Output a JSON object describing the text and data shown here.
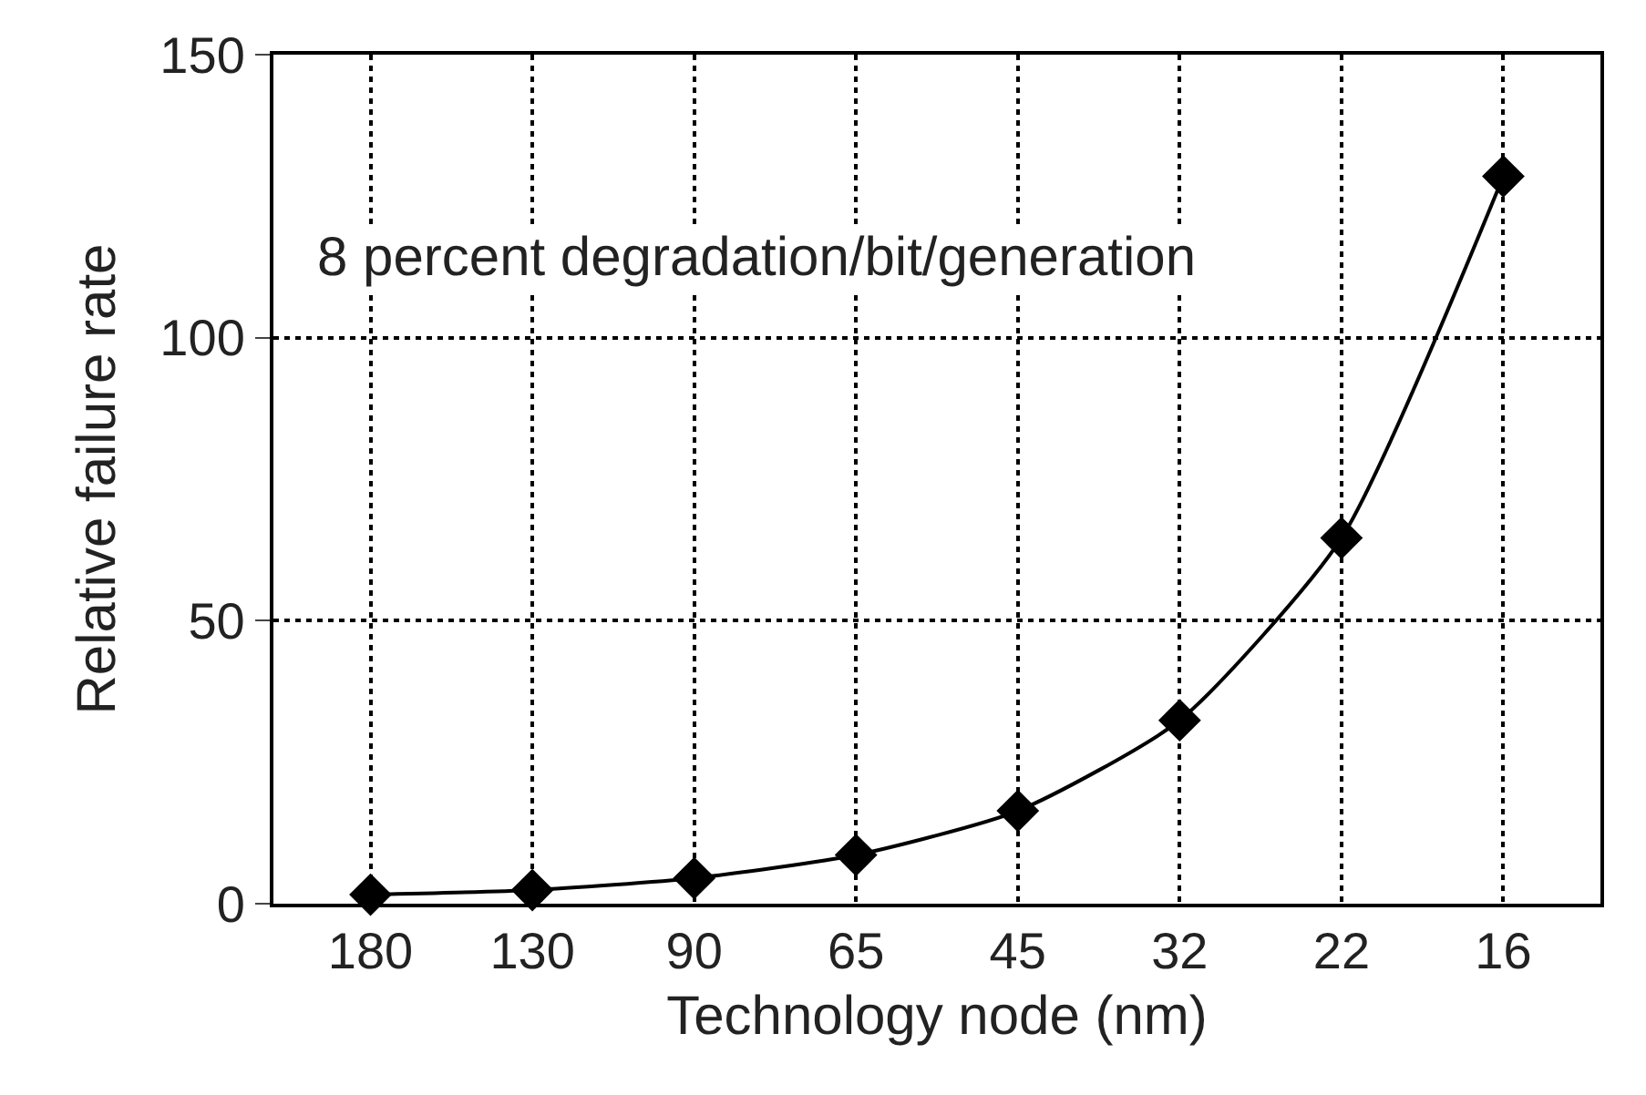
{
  "chart_data": {
    "type": "line",
    "xlabel": "Technology node (nm)",
    "ylabel": "Relative failure rate",
    "categories": [
      "180",
      "130",
      "90",
      "65",
      "45",
      "32",
      "22",
      "16"
    ],
    "series": [
      {
        "color": "#000000",
        "values": [
          1.6,
          2.4,
          4.5,
          8.6,
          16.4,
          32.4,
          64.6,
          128.5
        ]
      }
    ],
    "ylim": [
      0,
      150
    ],
    "yticks": [
      0,
      50,
      100,
      150
    ],
    "grid": true,
    "legend": false,
    "marker": "diamond",
    "line_style": "solid",
    "annotations": [
      "8 percent degradation/bit/generation"
    ]
  }
}
